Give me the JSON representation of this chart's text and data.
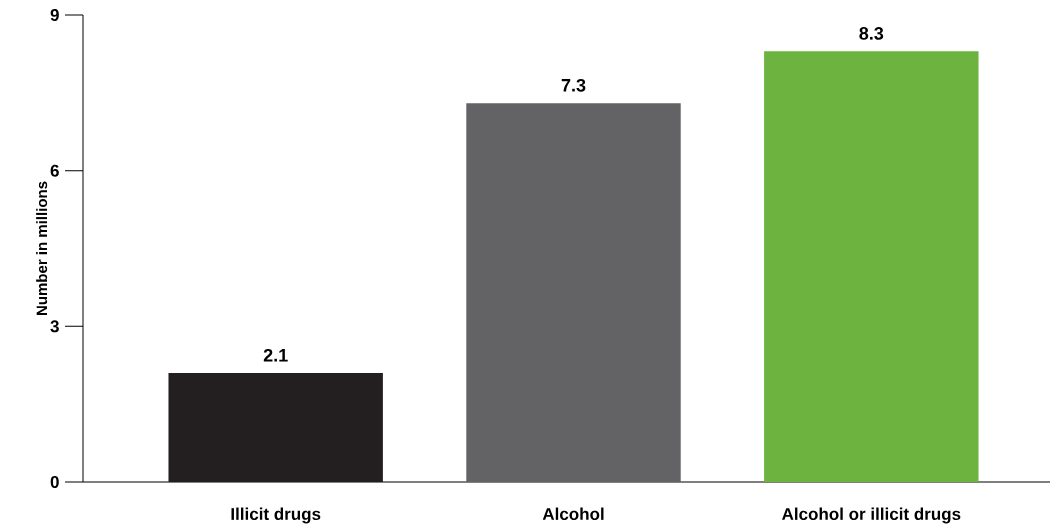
{
  "chart_data": {
    "type": "bar",
    "ylabel": "Number in millions",
    "categories": [
      "Illicit drugs",
      "Alcohol",
      "Alcohol or illicit drugs"
    ],
    "values": [
      2.1,
      7.3,
      8.3
    ],
    "colors": [
      "#231f20",
      "#636365",
      "#6db33f"
    ],
    "ylim": [
      0,
      9
    ],
    "yticks": [
      0,
      3,
      6,
      9
    ],
    "data_labels": true
  }
}
